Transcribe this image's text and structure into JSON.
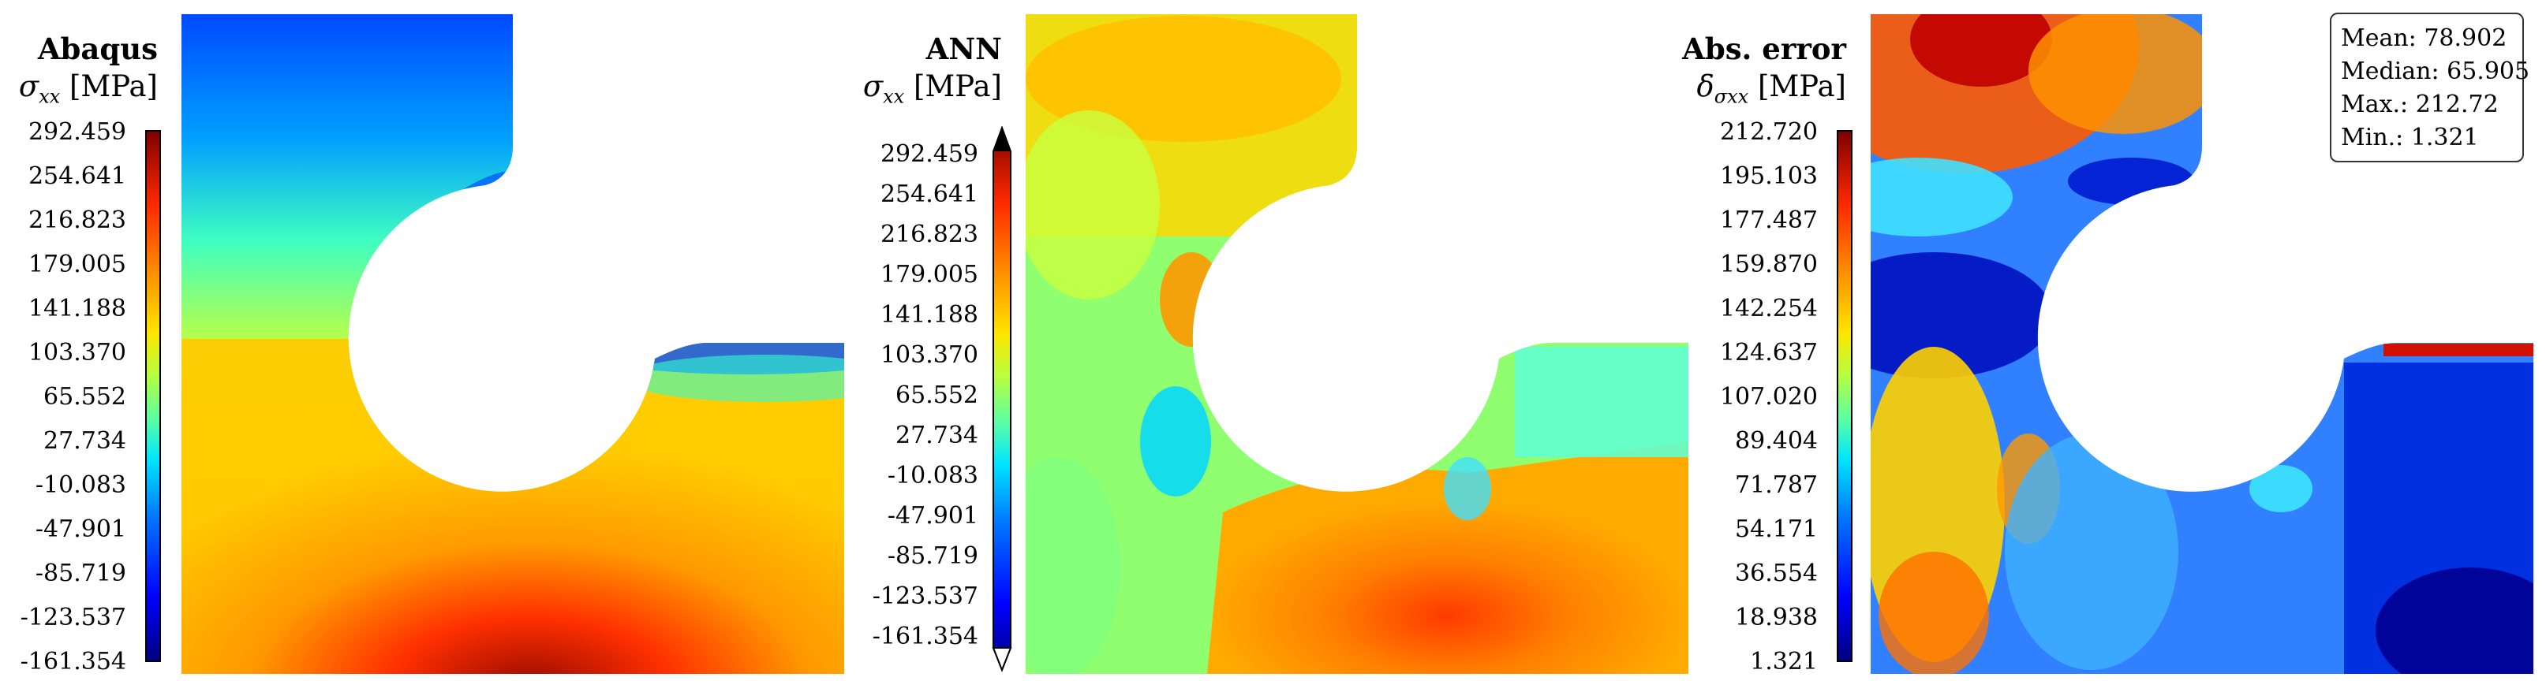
{
  "panels": [
    {
      "title": "Abaqus",
      "subtitle_symbol": "σ",
      "subtitle_subscript": "xx",
      "unit": "[MPa]",
      "colorbar_ticks": [
        "292.459",
        "254.641",
        "216.823",
        "179.005",
        "141.188",
        "103.370",
        "65.552",
        "27.734",
        "-10.083",
        "-47.901",
        "-85.719",
        "-123.537",
        "-161.354"
      ]
    },
    {
      "title": "ANN",
      "subtitle_symbol": "σ",
      "subtitle_subscript": "xx",
      "unit": "[MPa]",
      "colorbar_ticks": [
        "292.459",
        "254.641",
        "216.823",
        "179.005",
        "141.188",
        "103.370",
        "65.552",
        "27.734",
        "-10.083",
        "-47.901",
        "-85.719",
        "-123.537",
        "-161.354"
      ]
    },
    {
      "title": "Abs. error",
      "subtitle_symbol": "δ",
      "subtitle_subscript": "σxx",
      "unit": "[MPa]",
      "colorbar_ticks": [
        "212.720",
        "195.103",
        "177.487",
        "159.870",
        "142.254",
        "124.637",
        "107.020",
        "89.404",
        "71.787",
        "54.171",
        "36.554",
        "18.938",
        "1.321"
      ]
    }
  ],
  "stats": {
    "mean": "Mean: 78.902",
    "median": "Median: 65.905",
    "max": "Max.: 212.72",
    "min": "Min.: 1.321"
  },
  "chart_data": [
    {
      "type": "heatmap",
      "title": "Abaqus",
      "ylabel": "σxx [MPa]",
      "colorbar_range": [
        -161.354,
        292.459
      ],
      "colormap": "jet"
    },
    {
      "type": "heatmap",
      "title": "ANN",
      "ylabel": "σxx [MPa]",
      "colorbar_range": [
        -161.354,
        292.459
      ],
      "colormap": "jet"
    },
    {
      "type": "heatmap",
      "title": "Abs. error",
      "ylabel": "δσxx [MPa]",
      "colorbar_range": [
        1.321,
        212.72
      ],
      "colormap": "jet",
      "stats": {
        "mean": 78.902,
        "median": 65.905,
        "max": 212.72,
        "min": 1.321
      }
    }
  ]
}
